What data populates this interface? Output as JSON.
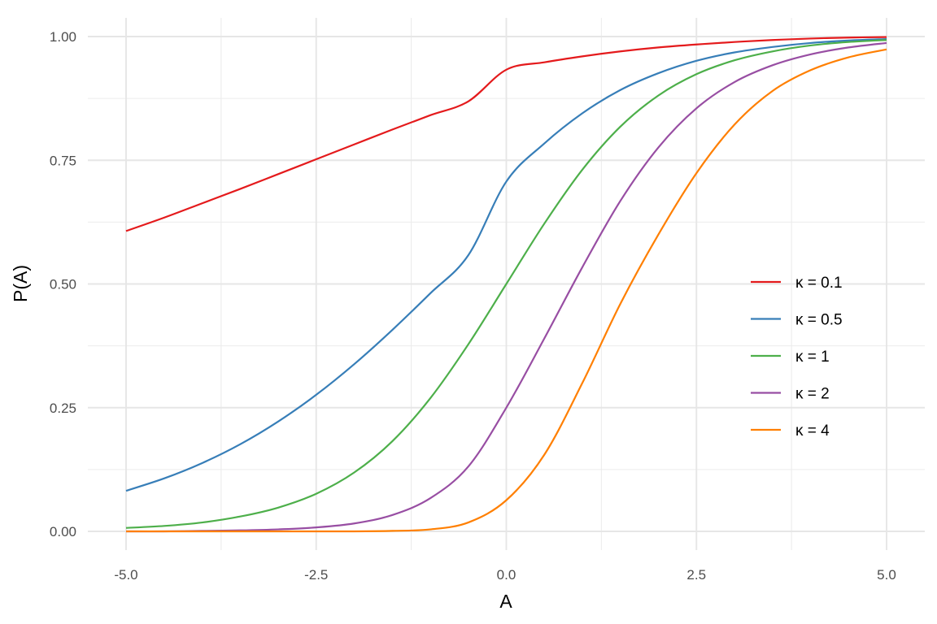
{
  "chart_data": {
    "type": "line",
    "title": "",
    "xlabel": "A",
    "ylabel": "P(A)",
    "xlim": [
      -5.0,
      5.0
    ],
    "ylim": [
      0.0,
      1.0
    ],
    "x_ticks": [
      "-5.0",
      "-2.5",
      "0.0",
      "2.5",
      "5.0"
    ],
    "y_ticks": [
      "0.00",
      "0.25",
      "0.50",
      "0.75",
      "1.00"
    ],
    "grid": true,
    "legend_position": "right",
    "x": [
      -5.0,
      -4.5,
      -4.0,
      -3.5,
      -3.0,
      -2.5,
      -2.0,
      -1.5,
      -1.0,
      -0.5,
      0.0,
      0.5,
      1.0,
      1.5,
      2.0,
      2.5,
      3.0,
      3.5,
      4.0,
      4.5,
      5.0
    ],
    "series": [
      {
        "name": "κ = 0.1",
        "color": "#e41a1c",
        "values": [
          0.607,
          0.634,
          0.663,
          0.692,
          0.722,
          0.752,
          0.782,
          0.812,
          0.841,
          0.869,
          0.933,
          0.948,
          0.96,
          0.97,
          0.978,
          0.984,
          0.989,
          0.993,
          0.996,
          0.998,
          0.999
        ]
      },
      {
        "name": "κ = 0.5",
        "color": "#377eb8",
        "values": [
          0.082,
          0.107,
          0.138,
          0.176,
          0.222,
          0.276,
          0.338,
          0.407,
          0.481,
          0.558,
          0.707,
          0.784,
          0.845,
          0.892,
          0.926,
          0.951,
          0.968,
          0.979,
          0.987,
          0.992,
          0.995
        ]
      },
      {
        "name": "κ = 1",
        "color": "#4daf4a",
        "values": [
          0.007,
          0.011,
          0.018,
          0.03,
          0.048,
          0.076,
          0.119,
          0.182,
          0.269,
          0.378,
          0.5,
          0.622,
          0.731,
          0.818,
          0.881,
          0.924,
          0.952,
          0.97,
          0.982,
          0.989,
          0.993
        ]
      },
      {
        "name": "κ = 2",
        "color": "#984ea3",
        "values": [
          0.0,
          0.0,
          0.001,
          0.002,
          0.004,
          0.008,
          0.016,
          0.033,
          0.067,
          0.131,
          0.25,
          0.39,
          0.534,
          0.668,
          0.776,
          0.855,
          0.908,
          0.942,
          0.964,
          0.978,
          0.987
        ]
      },
      {
        "name": "κ = 4",
        "color": "#ff7f00",
        "values": [
          0.0,
          0.0,
          0.0,
          0.0,
          0.0,
          0.0,
          0.0,
          0.001,
          0.004,
          0.018,
          0.063,
          0.155,
          0.3,
          0.46,
          0.6,
          0.724,
          0.822,
          0.89,
          0.932,
          0.958,
          0.974
        ]
      }
    ]
  }
}
